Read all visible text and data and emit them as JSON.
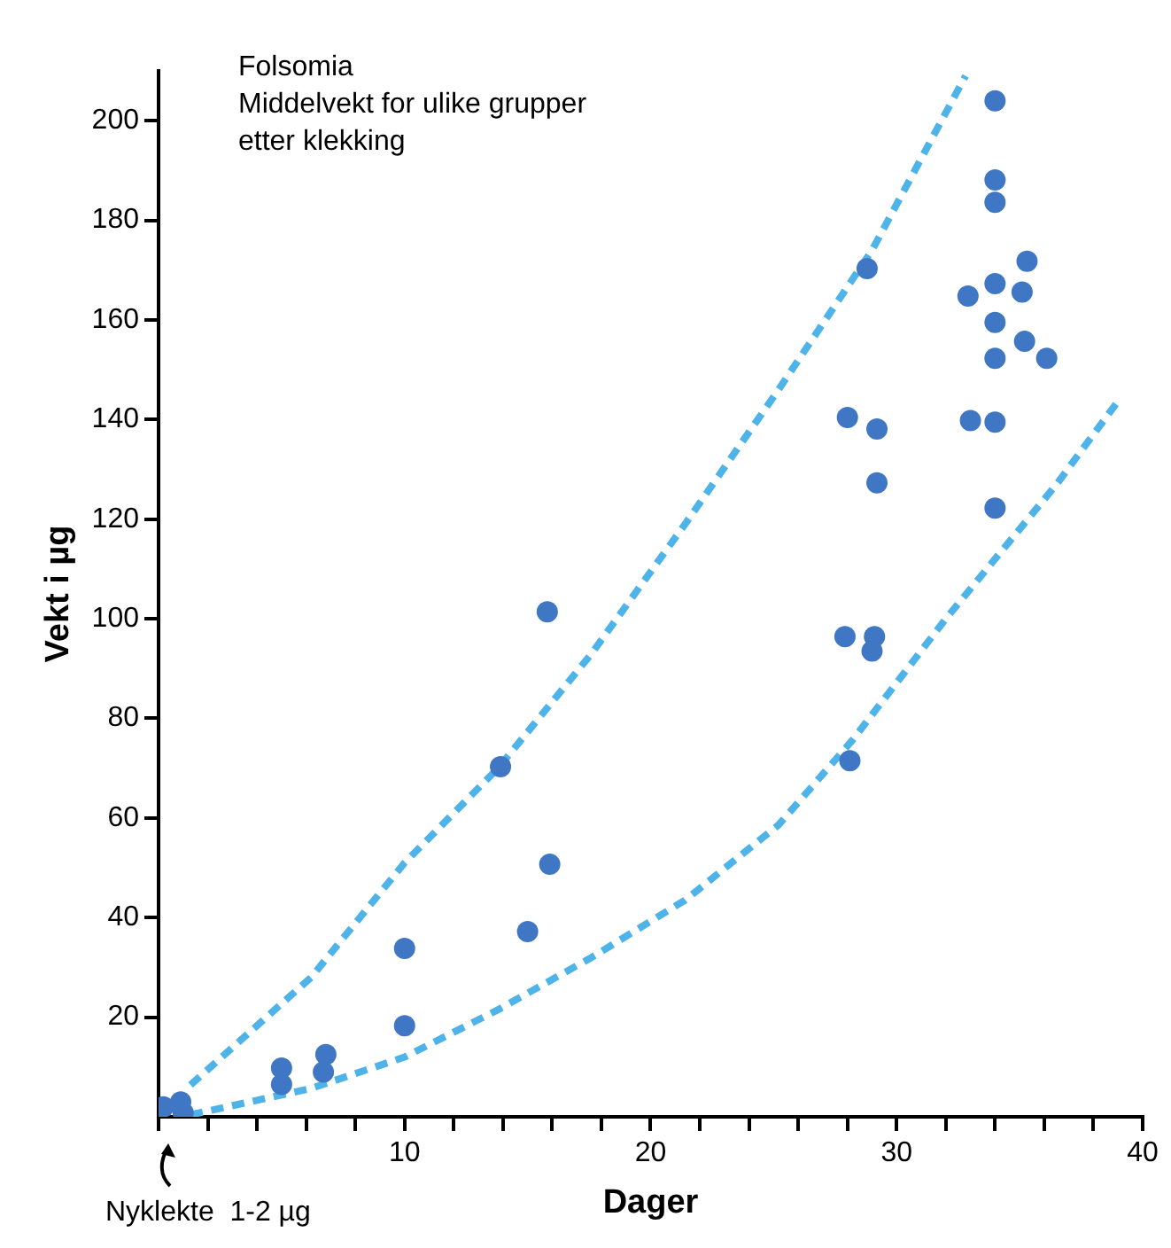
{
  "chart_data": {
    "type": "scatter",
    "title": "Folsomia",
    "subtitle": "Middelvekt for ulike grupper etter klekking",
    "xlabel": "Dager",
    "ylabel": "Vekt i µg",
    "annotations": [
      "Nyklekte  1-2 µg"
    ],
    "xlim": [
      0,
      40
    ],
    "ylim": [
      0,
      210
    ],
    "xticks": [
      {
        "value": 0,
        "label": null
      },
      {
        "value": 2,
        "label": null
      },
      {
        "value": 4,
        "label": null
      },
      {
        "value": 6,
        "label": null
      },
      {
        "value": 8,
        "label": null
      },
      10,
      {
        "value": 12,
        "label": null
      },
      {
        "value": 14,
        "label": null
      },
      {
        "value": 16,
        "label": null
      },
      {
        "value": 18,
        "label": null
      },
      20,
      {
        "value": 22,
        "label": null
      },
      {
        "value": 24,
        "label": null
      },
      {
        "value": 26,
        "label": null
      },
      {
        "value": 28,
        "label": null
      },
      30,
      {
        "value": 32,
        "label": null
      },
      {
        "value": 34,
        "label": null
      },
      {
        "value": 36,
        "label": null
      },
      {
        "value": 38,
        "label": null
      },
      40
    ],
    "yticks": [
      20,
      40,
      60,
      80,
      100,
      120,
      140,
      160,
      180,
      200
    ],
    "grid": false,
    "legend": false,
    "series": [
      {
        "color": "#3f77c4",
        "marker": "circle",
        "x": [
          0.2,
          0.9,
          1,
          5,
          5,
          6.7,
          6.8,
          10,
          10,
          13.9,
          15.9,
          15,
          15.8,
          34,
          34,
          34,
          35.3,
          34,
          35.1,
          32.9,
          34,
          35.2,
          36.1,
          34,
          28.8,
          28,
          29.2,
          29.2,
          33,
          34,
          34,
          27.9,
          29.1,
          29,
          28.1
        ],
        "values": [
          2,
          3,
          0.8,
          9.8,
          6.5,
          9,
          12.5,
          33.8,
          18.3,
          70.3,
          50.7,
          37.2,
          101.4,
          204,
          188.1,
          183.6,
          171.8,
          167.3,
          165.6,
          164.8,
          159.5,
          155.7,
          152.3,
          152.3,
          170.3,
          140.4,
          138.1,
          127.3,
          139.8,
          139.5,
          122.2,
          96.4,
          96.4,
          93.5,
          71.5
        ]
      },
      {
        "type": "line",
        "color": "#4db3e8",
        "marker": "none",
        "line_style": "dashed",
        "x": [
          1.3,
          6.2,
          10,
          13.8,
          17.6,
          21.4,
          25.2,
          29,
          32.8
        ],
        "values": [
          6.4,
          28,
          51,
          70,
          93,
          119,
          146,
          174,
          209
        ]
      },
      {
        "type": "line",
        "color": "#4db3e8",
        "marker": "none",
        "line_style": "dashed",
        "x": [
          1.3,
          6.2,
          10,
          13.8,
          17.6,
          21.4,
          25.2,
          28.2,
          32,
          36.5,
          39
        ],
        "values": [
          0.4,
          5.7,
          12,
          21.5,
          32,
          43.5,
          58.6,
          75.6,
          100,
          127,
          143.7
        ]
      }
    ]
  }
}
